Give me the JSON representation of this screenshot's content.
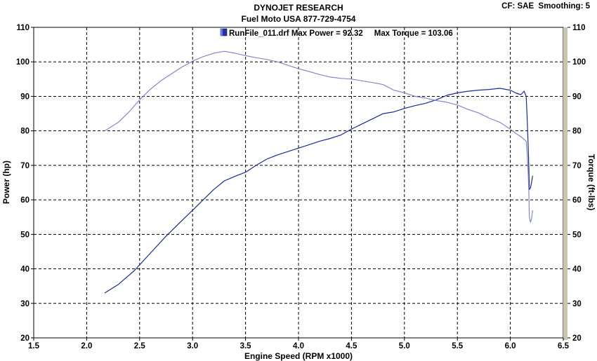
{
  "header": {
    "title": "DYNOJET RESEARCH",
    "subtitle": "Fuel Moto USA 877-729-4754",
    "settings": "CF: SAE  Smoothing: 5"
  },
  "chart_data": {
    "type": "line",
    "legend": {
      "run_file": "RunFile_011.drf",
      "text": "RunFile_011.drf Max Power = 92.32     Max Torque = 103.06",
      "placement": "top-center"
    },
    "xlabel": "Engine Speed (RPM x1000)",
    "ylabel_left": "Power (hp)",
    "ylabel_right": "Torque (ft-lbs)",
    "xlim": [
      1.5,
      6.5
    ],
    "ylim": [
      20,
      110
    ],
    "x_ticks": [
      "1.5",
      "2.0",
      "2.5",
      "3.0",
      "3.5",
      "4.0",
      "4.5",
      "5.0",
      "5.5",
      "6.0",
      "6.5"
    ],
    "y_ticks": [
      "20",
      "30",
      "40",
      "50",
      "60",
      "70",
      "80",
      "90",
      "100",
      "110"
    ],
    "grid": true,
    "max_power": 92.32,
    "max_torque": 103.06,
    "series": [
      {
        "key": "power",
        "color": "#1a2a9a",
        "points": [
          [
            2.17,
            33
          ],
          [
            2.3,
            35.5
          ],
          [
            2.45,
            39.5
          ],
          [
            2.6,
            44.5
          ],
          [
            2.75,
            49.5
          ],
          [
            2.9,
            54
          ],
          [
            3.0,
            57
          ],
          [
            3.1,
            60
          ],
          [
            3.2,
            63
          ],
          [
            3.3,
            65.5
          ],
          [
            3.4,
            66.8
          ],
          [
            3.5,
            68
          ],
          [
            3.6,
            70
          ],
          [
            3.7,
            71.8
          ],
          [
            3.8,
            73
          ],
          [
            3.9,
            74
          ],
          [
            4.0,
            75
          ],
          [
            4.1,
            76
          ],
          [
            4.2,
            77
          ],
          [
            4.3,
            77.8
          ],
          [
            4.4,
            78.8
          ],
          [
            4.5,
            80.5
          ],
          [
            4.6,
            82
          ],
          [
            4.7,
            83.5
          ],
          [
            4.8,
            85
          ],
          [
            4.9,
            85.5
          ],
          [
            5.0,
            86.5
          ],
          [
            5.1,
            87.3
          ],
          [
            5.2,
            88
          ],
          [
            5.3,
            89
          ],
          [
            5.4,
            90.3
          ],
          [
            5.5,
            91
          ],
          [
            5.6,
            91.5
          ],
          [
            5.7,
            91.8
          ],
          [
            5.8,
            92
          ],
          [
            5.9,
            92.32
          ],
          [
            6.0,
            91.8
          ],
          [
            6.05,
            91
          ],
          [
            6.1,
            90.5
          ],
          [
            6.13,
            91.5
          ],
          [
            6.15,
            90
          ],
          [
            6.16,
            83
          ],
          [
            6.17,
            74.5
          ],
          [
            6.175,
            69
          ],
          [
            6.18,
            63
          ],
          [
            6.19,
            63.5
          ],
          [
            6.2,
            65
          ],
          [
            6.21,
            67
          ]
        ]
      },
      {
        "key": "torque",
        "color": "#8088cc",
        "points": [
          [
            2.17,
            80
          ],
          [
            2.3,
            82.5
          ],
          [
            2.4,
            85.5
          ],
          [
            2.5,
            89
          ],
          [
            2.6,
            92
          ],
          [
            2.7,
            94.5
          ],
          [
            2.8,
            96.5
          ],
          [
            2.9,
            98.5
          ],
          [
            3.0,
            100.2
          ],
          [
            3.1,
            101.5
          ],
          [
            3.2,
            102.5
          ],
          [
            3.3,
            103.06
          ],
          [
            3.4,
            102.5
          ],
          [
            3.5,
            101.8
          ],
          [
            3.6,
            101.2
          ],
          [
            3.7,
            100.7
          ],
          [
            3.8,
            100
          ],
          [
            3.9,
            99
          ],
          [
            4.0,
            98
          ],
          [
            4.1,
            97.2
          ],
          [
            4.2,
            96.3
          ],
          [
            4.3,
            95.6
          ],
          [
            4.4,
            95.2
          ],
          [
            4.5,
            95
          ],
          [
            4.6,
            94.5
          ],
          [
            4.7,
            94
          ],
          [
            4.8,
            93.4
          ],
          [
            4.9,
            91.8
          ],
          [
            5.0,
            91
          ],
          [
            5.1,
            90
          ],
          [
            5.2,
            89.5
          ],
          [
            5.3,
            88.8
          ],
          [
            5.4,
            88.3
          ],
          [
            5.5,
            87.5
          ],
          [
            5.6,
            86.2
          ],
          [
            5.7,
            85.2
          ],
          [
            5.8,
            83.7
          ],
          [
            5.9,
            82.5
          ],
          [
            6.0,
            80.5
          ],
          [
            6.05,
            79.3
          ],
          [
            6.1,
            78.3
          ],
          [
            6.15,
            77
          ],
          [
            6.16,
            73
          ],
          [
            6.17,
            67
          ],
          [
            6.175,
            62
          ],
          [
            6.18,
            55
          ],
          [
            6.19,
            53.5
          ],
          [
            6.2,
            54.5
          ],
          [
            6.21,
            57
          ]
        ]
      }
    ]
  }
}
